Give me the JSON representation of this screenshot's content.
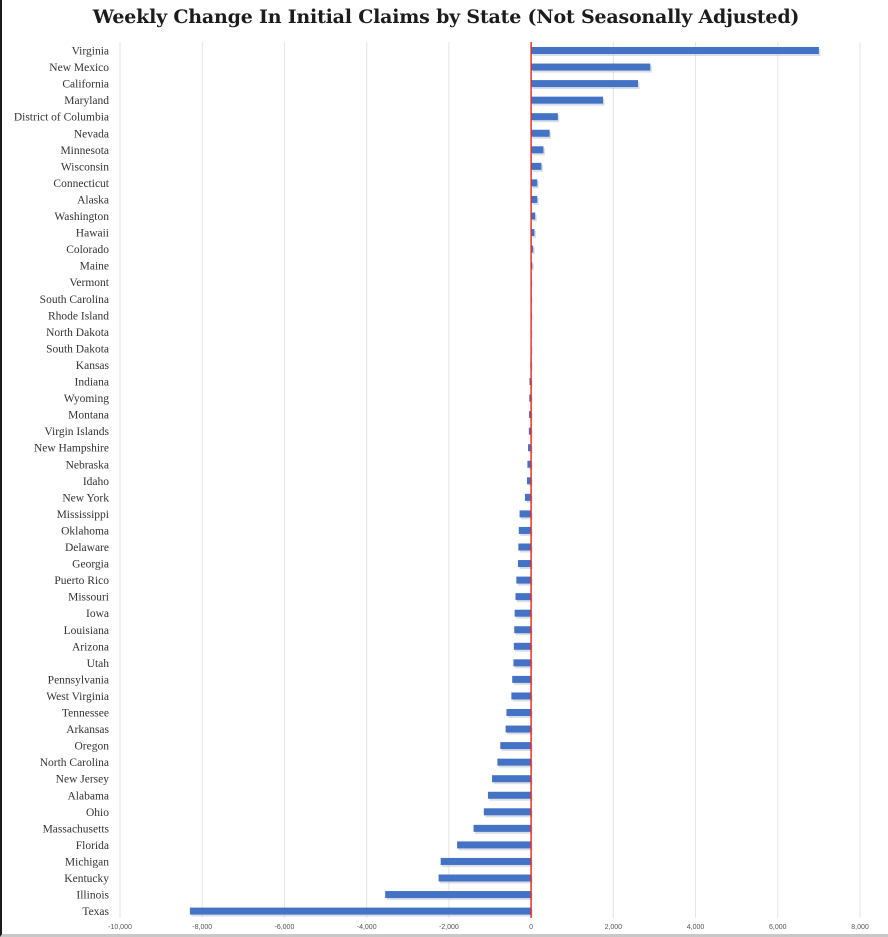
{
  "chart_data": {
    "type": "bar",
    "orientation": "horizontal",
    "title": "Weekly Change In Initial Claims by State (Not Seasonally Adjusted)",
    "xlabel": "",
    "ylabel": "",
    "xlim": [
      -10000,
      8000
    ],
    "xticks": [
      -10000,
      -8000,
      -6000,
      -4000,
      -2000,
      0,
      2000,
      4000,
      6000,
      8000
    ],
    "xtick_labels": [
      "-10,000",
      "-8,000",
      "-6,000",
      "-4,000",
      "-2,000",
      "0",
      "2,000",
      "4,000",
      "6,000",
      "8,000"
    ],
    "grid": true,
    "bar_color": "#4472c4",
    "zero_line_color": "#e8261c",
    "grid_color": "#e4e4e4",
    "categories": [
      "Virginia",
      "New Mexico",
      "California",
      "Maryland",
      "District of Columbia",
      "Nevada",
      "Minnesota",
      "Wisconsin",
      "Connecticut",
      "Alaska",
      "Washington",
      "Hawaii",
      "Colorado",
      "Maine",
      "Vermont",
      "South Carolina",
      "Rhode Island",
      "North Dakota",
      "South Dakota",
      "Kansas",
      "Indiana",
      "Wyoming",
      "Montana",
      "Virgin Islands",
      "New Hampshire",
      "Nebraska",
      "Idaho",
      "New York",
      "Mississippi",
      "Oklahoma",
      "Delaware",
      "Georgia",
      "Puerto Rico",
      "Missouri",
      "Iowa",
      "Louisiana",
      "Arizona",
      "Utah",
      "Pennsylvania",
      "West Virginia",
      "Tennessee",
      "Arkansas",
      "Oregon",
      "North Carolina",
      "New Jersey",
      "Alabama",
      "Ohio",
      "Massachusetts",
      "Florida",
      "Michigan",
      "Kentucky",
      "Illinois",
      "Texas"
    ],
    "values": [
      7000,
      2900,
      2600,
      1750,
      650,
      450,
      300,
      250,
      150,
      150,
      100,
      80,
      50,
      30,
      10,
      5,
      0,
      -10,
      -15,
      -20,
      -40,
      -45,
      -50,
      -55,
      -75,
      -90,
      -100,
      -150,
      -280,
      -300,
      -310,
      -320,
      -360,
      -380,
      -400,
      -410,
      -420,
      -430,
      -460,
      -480,
      -600,
      -620,
      -750,
      -820,
      -950,
      -1050,
      -1150,
      -1400,
      -1800,
      -2200,
      -2250,
      -3550,
      -8300
    ]
  }
}
